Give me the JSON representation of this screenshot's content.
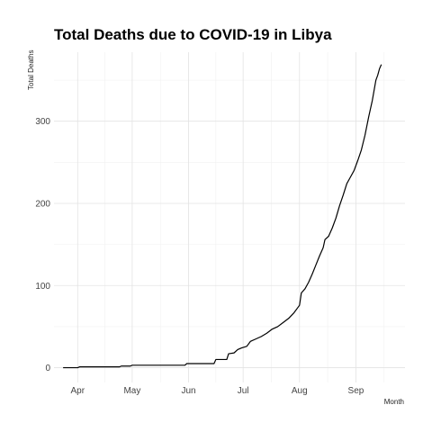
{
  "chart_data": {
    "type": "line",
    "title": "Total Deaths due to COVID-19 in Libya",
    "xlabel": "Month",
    "ylabel": "Total Deaths",
    "grid": true,
    "legend": "none",
    "xlim": [
      "2020-03-19",
      "2020-09-28"
    ],
    "ylim": [
      -18,
      384
    ],
    "x_ticks": [
      {
        "date": "2020-04-01",
        "label": "Apr"
      },
      {
        "date": "2020-05-01",
        "label": "May"
      },
      {
        "date": "2020-06-01",
        "label": "Jun"
      },
      {
        "date": "2020-07-01",
        "label": "Jul"
      },
      {
        "date": "2020-08-01",
        "label": "Aug"
      },
      {
        "date": "2020-09-01",
        "label": "Sep"
      }
    ],
    "y_ticks": [
      0,
      100,
      200,
      300
    ],
    "series": [
      {
        "color": "#000000",
        "points": [
          {
            "x": "2020-03-24",
            "y": 0
          },
          {
            "x": "2020-04-01",
            "y": 0
          },
          {
            "x": "2020-04-02",
            "y": 1
          },
          {
            "x": "2020-04-24",
            "y": 1
          },
          {
            "x": "2020-04-25",
            "y": 2
          },
          {
            "x": "2020-04-30",
            "y": 2
          },
          {
            "x": "2020-05-01",
            "y": 3
          },
          {
            "x": "2020-05-30",
            "y": 3
          },
          {
            "x": "2020-05-31",
            "y": 5
          },
          {
            "x": "2020-06-15",
            "y": 5
          },
          {
            "x": "2020-06-16",
            "y": 10
          },
          {
            "x": "2020-06-22",
            "y": 10
          },
          {
            "x": "2020-06-23",
            "y": 17
          },
          {
            "x": "2020-06-26",
            "y": 18
          },
          {
            "x": "2020-06-28",
            "y": 22
          },
          {
            "x": "2020-06-30",
            "y": 24
          },
          {
            "x": "2020-07-03",
            "y": 26
          },
          {
            "x": "2020-07-05",
            "y": 32
          },
          {
            "x": "2020-07-08",
            "y": 35
          },
          {
            "x": "2020-07-11",
            "y": 38
          },
          {
            "x": "2020-07-14",
            "y": 42
          },
          {
            "x": "2020-07-17",
            "y": 47
          },
          {
            "x": "2020-07-20",
            "y": 50
          },
          {
            "x": "2020-07-23",
            "y": 55
          },
          {
            "x": "2020-07-26",
            "y": 60
          },
          {
            "x": "2020-07-29",
            "y": 67
          },
          {
            "x": "2020-07-31",
            "y": 73
          },
          {
            "x": "2020-08-01",
            "y": 76
          },
          {
            "x": "2020-08-02",
            "y": 91
          },
          {
            "x": "2020-08-04",
            "y": 96
          },
          {
            "x": "2020-08-06",
            "y": 104
          },
          {
            "x": "2020-08-08",
            "y": 114
          },
          {
            "x": "2020-08-10",
            "y": 125
          },
          {
            "x": "2020-08-12",
            "y": 136
          },
          {
            "x": "2020-08-14",
            "y": 146
          },
          {
            "x": "2020-08-15",
            "y": 156
          },
          {
            "x": "2020-08-17",
            "y": 160
          },
          {
            "x": "2020-08-19",
            "y": 170
          },
          {
            "x": "2020-08-21",
            "y": 182
          },
          {
            "x": "2020-08-23",
            "y": 197
          },
          {
            "x": "2020-08-25",
            "y": 210
          },
          {
            "x": "2020-08-27",
            "y": 224
          },
          {
            "x": "2020-08-29",
            "y": 232
          },
          {
            "x": "2020-08-31",
            "y": 240
          },
          {
            "x": "2020-09-02",
            "y": 252
          },
          {
            "x": "2020-09-04",
            "y": 265
          },
          {
            "x": "2020-09-06",
            "y": 283
          },
          {
            "x": "2020-09-08",
            "y": 305
          },
          {
            "x": "2020-09-10",
            "y": 325
          },
          {
            "x": "2020-09-12",
            "y": 350
          },
          {
            "x": "2020-09-13",
            "y": 356
          },
          {
            "x": "2020-09-14",
            "y": 364
          },
          {
            "x": "2020-09-15",
            "y": 369
          }
        ]
      }
    ]
  }
}
